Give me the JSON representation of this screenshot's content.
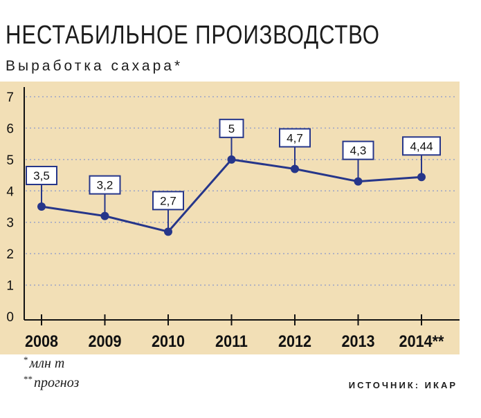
{
  "header": {
    "title": "НЕСТАБИЛЬНОЕ ПРОИЗВОДСТВО",
    "subtitle": "Выработка сахара*"
  },
  "footnotes": {
    "note1_mark": "*",
    "note1_text": "млн т",
    "note2_mark": "**",
    "note2_text": "прогноз",
    "source": "ИСТОЧНИК: ИКАР"
  },
  "colors": {
    "background": "#f2dfb6",
    "line": "#26368a",
    "grid": "#9aa3c8",
    "axis": "#111111"
  },
  "chart_data": {
    "type": "line",
    "title": "НЕСТАБИЛЬНОЕ ПРОИЗВОДСТВО",
    "subtitle": "Выработка сахара*",
    "categories": [
      "2008",
      "2009",
      "2010",
      "2011",
      "2012",
      "2013",
      "2014**"
    ],
    "series": [
      {
        "values": [
          3.5,
          3.2,
          2.7,
          5,
          4.7,
          4.3,
          4.44
        ],
        "labels": [
          "3,5",
          "3,2",
          "2,7",
          "5",
          "4,7",
          "4,3",
          "4,44"
        ]
      }
    ],
    "yticks": [
      "0",
      "1",
      "2",
      "3",
      "4",
      "5",
      "6",
      "7"
    ],
    "ylim": [
      0,
      7
    ],
    "grid": true,
    "grid_style": "dotted horizontal"
  }
}
